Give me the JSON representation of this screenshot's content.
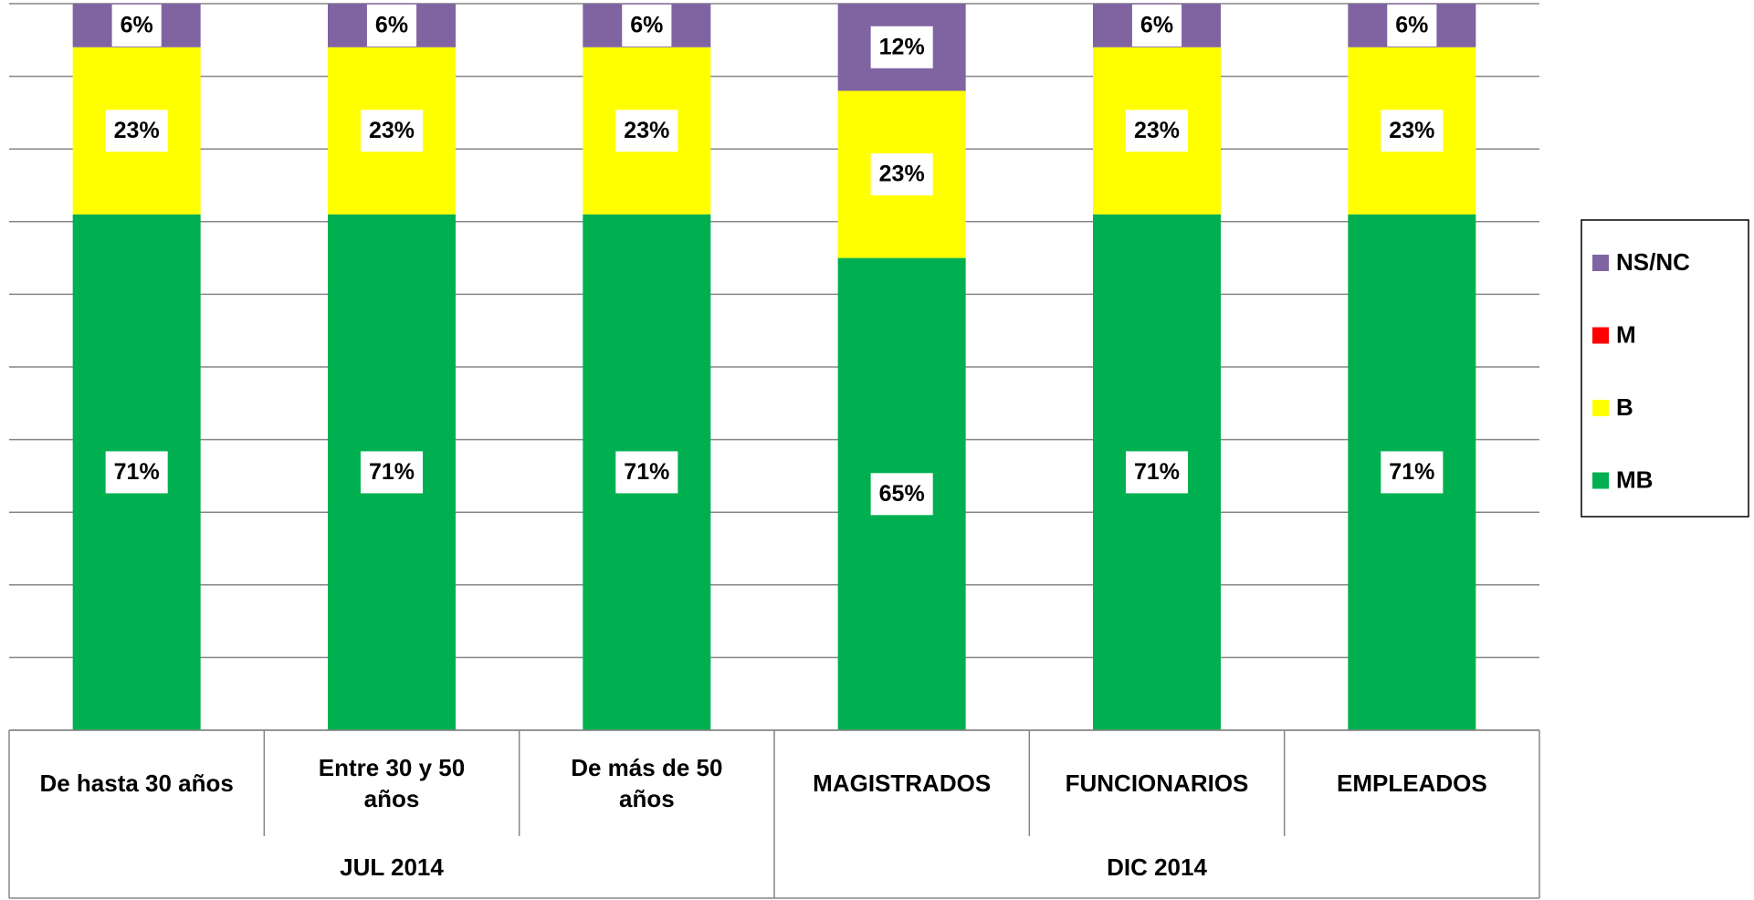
{
  "chart_data": {
    "type": "stacked_bar",
    "categories": [
      "De hasta 30 años",
      "Entre 30 y 50 años",
      "De más de 50 años",
      "MAGISTRADOS",
      "FUNCIONARIOS",
      "EMPLEADOS"
    ],
    "groups": [
      {
        "label": "JUL 2014",
        "size": 3
      },
      {
        "label": "DIC 2014",
        "size": 3
      }
    ],
    "series": [
      {
        "name": "MB",
        "color": "#00b050",
        "values": [
          71,
          71,
          71,
          65,
          71,
          71
        ],
        "value_labels": [
          "71%",
          "71%",
          "71%",
          "65%",
          "71%",
          "71%"
        ]
      },
      {
        "name": "B",
        "color": "#ffff00",
        "values": [
          23,
          23,
          23,
          23,
          23,
          23
        ],
        "value_labels": [
          "23%",
          "23%",
          "23%",
          "23%",
          "23%",
          "23%"
        ]
      },
      {
        "name": "M",
        "color": "#ff0000",
        "values": [
          0,
          0,
          0,
          0,
          0,
          0
        ]
      },
      {
        "name": "NS/NC",
        "color": "#8064a2",
        "values": [
          6,
          6,
          6,
          12,
          6,
          6
        ],
        "value_labels": [
          "6%",
          "6%",
          "6%",
          "12%",
          "6%",
          "6%"
        ]
      }
    ],
    "ylim": [
      0,
      100
    ],
    "yticks": [
      0,
      10,
      20,
      30,
      40,
      50,
      60,
      70,
      80,
      90,
      100
    ],
    "grid": true,
    "legend": "right"
  }
}
